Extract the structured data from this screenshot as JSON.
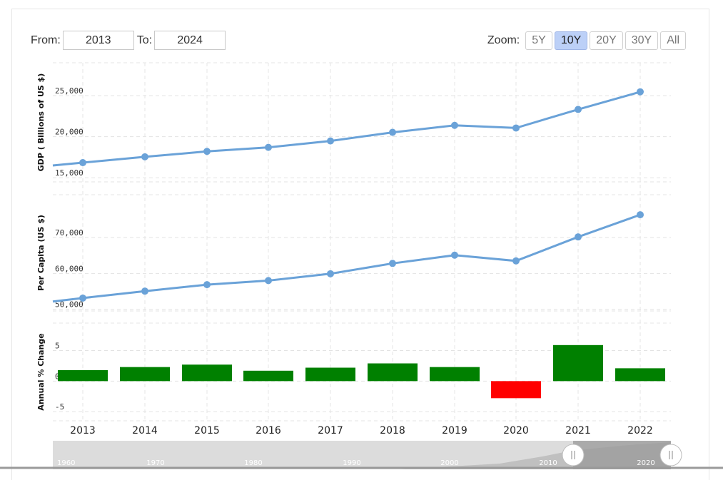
{
  "range": {
    "from_label": "From:",
    "from_value": "2013",
    "to_label": "To:",
    "to_value": "2024"
  },
  "zoom": {
    "label": "Zoom:",
    "buttons": [
      "5Y",
      "10Y",
      "20Y",
      "30Y",
      "All"
    ],
    "active": "10Y"
  },
  "colors": {
    "line": "#6aa2d8",
    "positive": "#008000",
    "negative": "#ff0000"
  },
  "chart_data": [
    {
      "type": "line",
      "ylabel": "GDP ( Billions of US $)",
      "x": [
        "2013",
        "2014",
        "2015",
        "2016",
        "2017",
        "2018",
        "2019",
        "2020",
        "2021",
        "2022"
      ],
      "values": [
        16840,
        17550,
        18210,
        18700,
        19480,
        20530,
        21380,
        21060,
        23320,
        25460
      ],
      "ylim": [
        14500,
        29000
      ],
      "yticks": [
        15000,
        20000,
        25000
      ],
      "ytick_labels": [
        "15,000",
        "20,000",
        "25,000"
      ]
    },
    {
      "type": "line",
      "ylabel": "Per Capita (US $)",
      "x": [
        "2013",
        "2014",
        "2015",
        "2016",
        "2017",
        "2018",
        "2019",
        "2020",
        "2021",
        "2022"
      ],
      "values": [
        53100,
        55050,
        56850,
        58000,
        59900,
        62800,
        65100,
        63500,
        70200,
        76400
      ],
      "ylim": [
        49500,
        82000
      ],
      "yticks": [
        50000,
        60000,
        70000
      ],
      "ytick_labels": [
        "50,000",
        "60,000",
        "70,000"
      ]
    },
    {
      "type": "bar",
      "ylabel": "Annual % Change",
      "categories": [
        "2013",
        "2014",
        "2015",
        "2016",
        "2017",
        "2018",
        "2019",
        "2020",
        "2021",
        "2022"
      ],
      "values": [
        1.8,
        2.3,
        2.7,
        1.7,
        2.2,
        2.9,
        2.3,
        -2.8,
        5.9,
        2.1
      ],
      "ylim": [
        -6.5,
        9.5
      ],
      "yticks": [
        -5,
        0,
        5
      ],
      "ytick_labels": [
        "-5",
        "0",
        "5"
      ]
    }
  ],
  "navigator": {
    "labels": [
      "1960",
      "1970",
      "1980",
      "1990",
      "2000",
      "2010",
      "2020"
    ]
  }
}
